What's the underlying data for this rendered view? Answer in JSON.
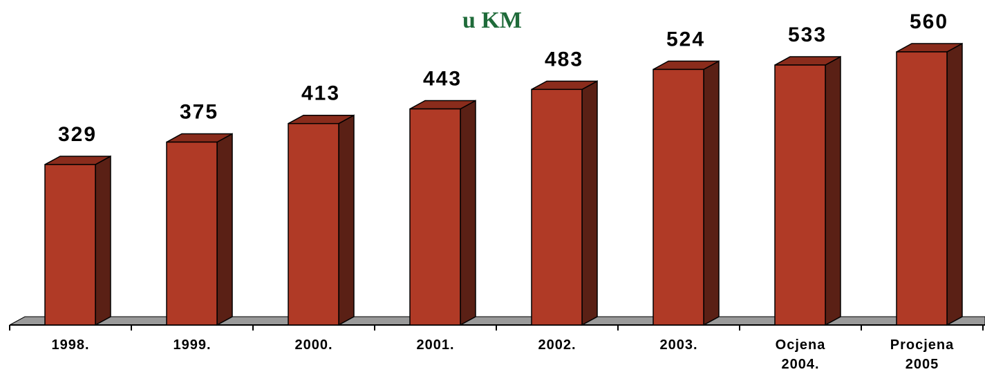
{
  "chart_data": {
    "type": "bar",
    "title": "u KM",
    "categories": [
      "1998.",
      "1999.",
      "2000.",
      "2001.",
      "2002.",
      "2003.",
      "Ocjena 2004.",
      "Procjena 2005"
    ],
    "values": [
      329,
      375,
      413,
      443,
      483,
      524,
      533,
      560
    ],
    "color": "#b03a26"
  }
}
